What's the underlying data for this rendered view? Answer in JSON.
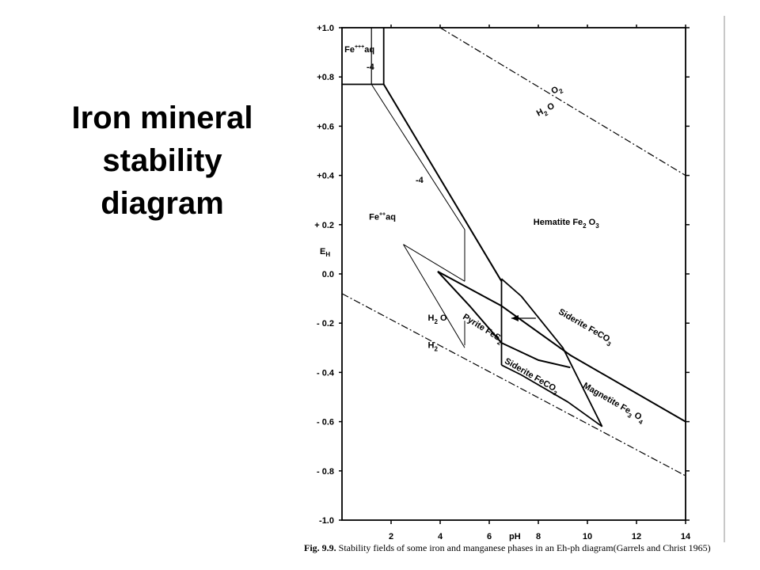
{
  "title": {
    "line1": "Iron mineral",
    "line2": "stability",
    "line3": "diagram"
  },
  "caption": {
    "fig": "Fig. 9.9.",
    "text": "Stability fields of some iron and manganese phases in an Eh-ph diagram(Garrels and Christ 1965)"
  },
  "chart_data": {
    "type": "diagram",
    "xlabel": "pH",
    "ylabel": "EH",
    "xlim": [
      0,
      14
    ],
    "ylim": [
      -1.0,
      1.0
    ],
    "x_ticks": [
      {
        "v": 2,
        "label": "2"
      },
      {
        "v": 4,
        "label": "4"
      },
      {
        "v": 6,
        "label": "6"
      },
      {
        "v": 8,
        "label": "8"
      },
      {
        "v": 10,
        "label": "10"
      },
      {
        "v": 12,
        "label": "12"
      },
      {
        "v": 14,
        "label": "14"
      }
    ],
    "y_ticks": [
      {
        "v": 1.0,
        "label": "+1.0"
      },
      {
        "v": 0.8,
        "label": "+0.8"
      },
      {
        "v": 0.6,
        "label": "+0.6"
      },
      {
        "v": 0.4,
        "label": "+0.4"
      },
      {
        "v": 0.2,
        "label": "+ 0.2"
      },
      {
        "v": 0.0,
        "label": "0.0"
      },
      {
        "v": -0.2,
        "label": "- 0.2"
      },
      {
        "v": -0.4,
        "label": "- 0.4"
      },
      {
        "v": -0.6,
        "label": "- 0.6"
      },
      {
        "v": -0.8,
        "label": "- 0.8"
      },
      {
        "v": -1.0,
        "label": "-1.0"
      }
    ],
    "dashed_lines": [
      {
        "name": "o2-h2o",
        "points": [
          [
            4,
            1.0
          ],
          [
            14,
            0.4
          ]
        ]
      },
      {
        "name": "h2o-h2",
        "points": [
          [
            0,
            -0.08
          ],
          [
            14,
            -0.82
          ]
        ]
      }
    ],
    "boundaries": [
      {
        "name": "fe3-vertical-1",
        "width": 1.2,
        "points": [
          [
            1.2,
            1.0
          ],
          [
            1.2,
            0.77
          ]
        ]
      },
      {
        "name": "fe3-vertical-2",
        "width": 1.8,
        "points": [
          [
            1.7,
            1.0
          ],
          [
            1.7,
            0.77
          ]
        ]
      },
      {
        "name": "fe3-fe2-horizontal",
        "width": 1.8,
        "points": [
          [
            0,
            0.77
          ],
          [
            1.7,
            0.77
          ]
        ]
      },
      {
        "name": "fe2-hematite-main",
        "width": 2.0,
        "points": [
          [
            1.7,
            0.77
          ],
          [
            6.5,
            -0.03
          ]
        ]
      },
      {
        "name": "fe2-hematite-thin",
        "width": 1.0,
        "points": [
          [
            1.2,
            0.77
          ],
          [
            5.0,
            0.18
          ],
          [
            5.0,
            -0.03
          ]
        ]
      },
      {
        "name": "thin-small-wedge-a",
        "width": 1.0,
        "points": [
          [
            2.5,
            0.12
          ],
          [
            5.0,
            -0.03
          ]
        ]
      },
      {
        "name": "thin-small-wedge-b",
        "width": 1.0,
        "points": [
          [
            2.5,
            0.12
          ],
          [
            5.0,
            -0.3
          ]
        ]
      },
      {
        "name": "thin-bottom-h2o",
        "width": 1.0,
        "points": [
          [
            5.0,
            -0.19
          ],
          [
            5.0,
            -0.29
          ]
        ]
      },
      {
        "name": "pyrite-upper",
        "width": 2.0,
        "points": [
          [
            3.9,
            0.01
          ],
          [
            6.5,
            -0.13
          ],
          [
            9.3,
            -0.33
          ],
          [
            14,
            -0.6
          ]
        ]
      },
      {
        "name": "pyrite-lower",
        "width": 2.0,
        "points": [
          [
            3.9,
            0.01
          ],
          [
            5.2,
            -0.13
          ],
          [
            6.5,
            -0.28
          ],
          [
            8.0,
            -0.35
          ],
          [
            9.3,
            -0.38
          ]
        ]
      },
      {
        "name": "siderite-vertical",
        "width": 1.8,
        "points": [
          [
            6.5,
            -0.02
          ],
          [
            6.5,
            -0.37
          ]
        ]
      },
      {
        "name": "hematite-siderite-upper",
        "width": 1.8,
        "points": [
          [
            6.5,
            -0.02
          ],
          [
            7.3,
            -0.09
          ],
          [
            9.0,
            -0.3
          ],
          [
            10.6,
            -0.62
          ]
        ]
      },
      {
        "name": "siderite-magnetite",
        "width": 1.8,
        "points": [
          [
            6.5,
            -0.37
          ],
          [
            7.3,
            -0.41
          ],
          [
            9.2,
            -0.52
          ],
          [
            10.6,
            -0.62
          ]
        ]
      }
    ],
    "arrow": {
      "from": [
        7.9,
        -0.18
      ],
      "to": [
        6.9,
        -0.18
      ]
    },
    "labels": [
      {
        "text": "Fe",
        "sup": "+++",
        "tail": "aq",
        "x": 0.1,
        "y": 0.9
      },
      {
        "text": "-4",
        "x": 1.0,
        "y": 0.83
      },
      {
        "text": "-4",
        "x": 3.0,
        "y": 0.37
      },
      {
        "text": "O",
        "sub": "2",
        "x": 8.6,
        "y": 0.73,
        "rotate": -28
      },
      {
        "text": "H",
        "sub": "2",
        "tail": " O",
        "x": 8.0,
        "y": 0.64,
        "rotate": -28
      },
      {
        "text": "Fe",
        "sup": "++",
        "tail": "aq",
        "x": 1.1,
        "y": 0.22
      },
      {
        "text": "Hematite  Fe",
        "sub": "2",
        "tail": " O",
        "sub2": "3",
        "x": 7.8,
        "y": 0.2
      },
      {
        "text": "H",
        "sub": "2",
        "tail": " O",
        "x": 3.5,
        "y": -0.19
      },
      {
        "text": "H",
        "sub": "2",
        "x": 3.5,
        "y": -0.3
      },
      {
        "text": "Pyrite  FeS",
        "sub": "2",
        "x": 4.9,
        "y": -0.18,
        "rotate": 32
      },
      {
        "text": "Siderite  FeCO",
        "sub": "3",
        "x": 8.8,
        "y": -0.16,
        "rotate": 30
      },
      {
        "text": "Siderite  FeCO",
        "sub": "3",
        "x": 6.6,
        "y": -0.36,
        "rotate": 30
      },
      {
        "text": "Magnetite  Fe",
        "sub": "3",
        "tail": " O",
        "sub2": "4",
        "x": 9.8,
        "y": -0.46,
        "rotate": 30
      }
    ]
  }
}
